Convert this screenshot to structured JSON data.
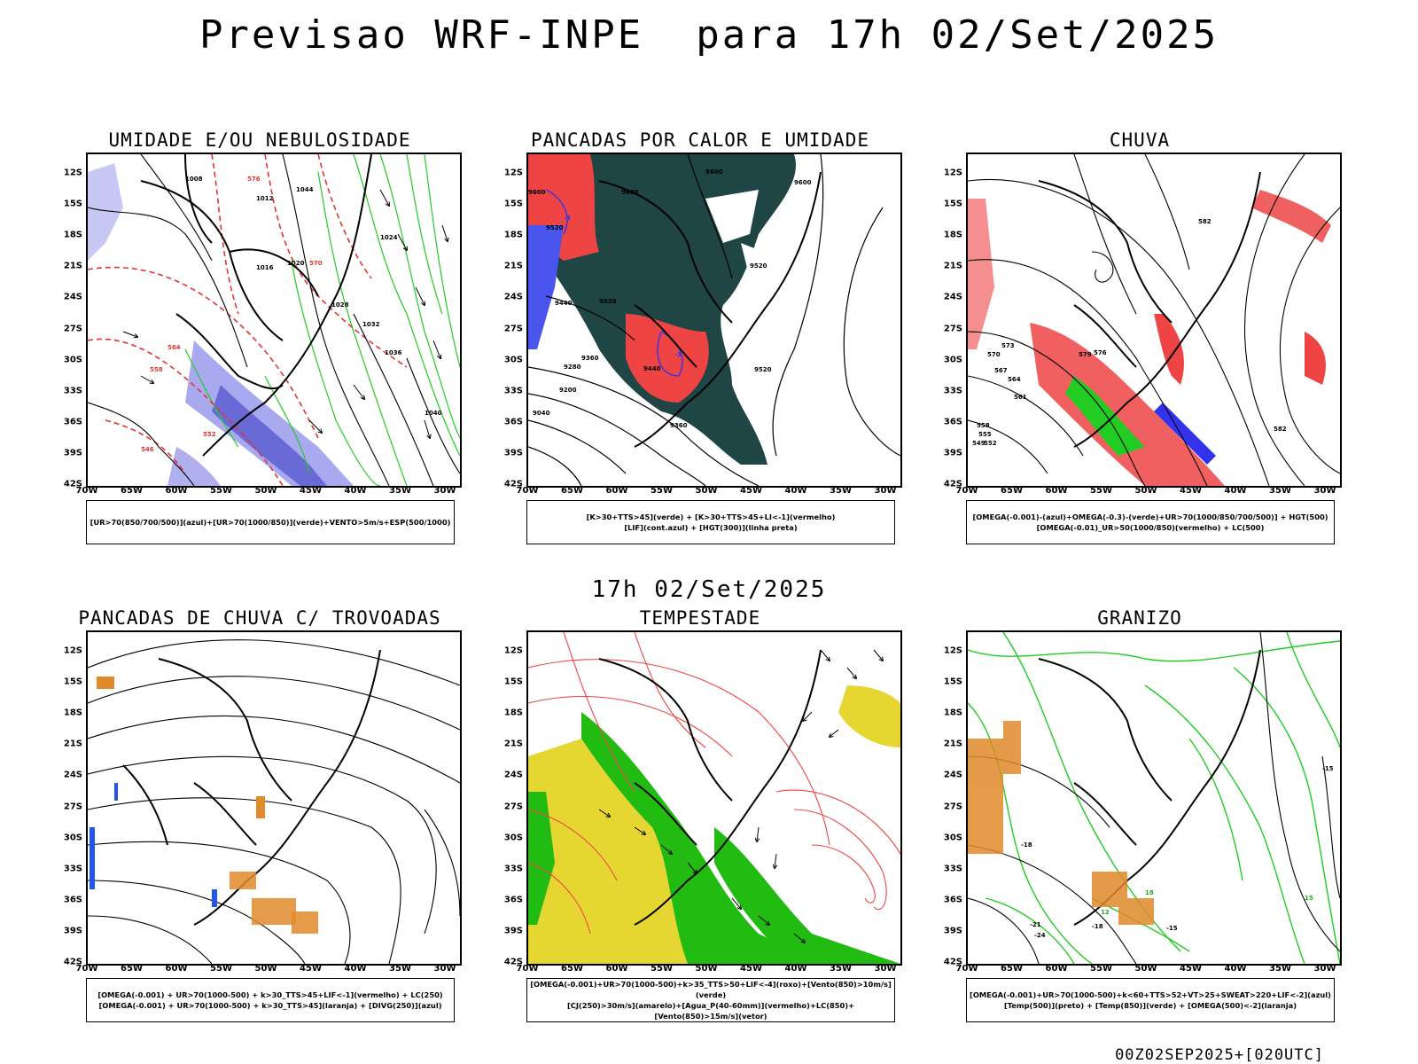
{
  "header": {
    "title": "Previsao WRF-INPE  para 17h 02/Set/2025",
    "mid_date": "17h 02/Set/2025",
    "run_label": "00Z02SEP2025+[020UTC]"
  },
  "axes": {
    "lat_labels": [
      "12S",
      "15S",
      "18S",
      "21S",
      "24S",
      "27S",
      "30S",
      "33S",
      "36S",
      "39S",
      "42S"
    ],
    "lon_labels": [
      "70W",
      "65W",
      "60W",
      "55W",
      "50W",
      "45W",
      "40W",
      "35W",
      "30W"
    ]
  },
  "panels": [
    {
      "id": "umidade",
      "title": "UMIDADE E/OU NEBULOSIDADE",
      "legend": [
        "[UR>70(850/700/500)](azul)+[UR>70(1000/850)](verde)+VENTO>5m/s+ESP(500/1000)"
      ],
      "contour_labels": [
        "1008",
        "1012",
        "1016",
        "1020",
        "1024",
        "1028",
        "1032",
        "1036",
        "1040",
        "1044",
        "576",
        "570",
        "564",
        "558",
        "552",
        "546"
      ],
      "colors": {
        "primary": "#8a8ae6",
        "secondary": "#22cc22",
        "accent": "#e33333"
      }
    },
    {
      "id": "pancadas-calor",
      "title": "PANCADAS POR CALOR E UMIDADE",
      "legend": [
        "[K>30+TTS>45](verde) + [K>30+TTS>45+LI<-1](vermelho)",
        "[LIF](cont.azul) + [HGT(300)](linha preta)"
      ],
      "contour_labels": [
        "9600",
        "9520",
        "9440",
        "9360",
        "9280",
        "9200",
        "9040",
        "-3"
      ],
      "colors": {
        "primary": "#1f4545",
        "secondary": "#ef4444",
        "accent": "#3333ee"
      }
    },
    {
      "id": "chuva",
      "title": "CHUVA",
      "legend": [
        "[OMEGA(-0.001)-(azul)+OMEGA(-0.3)-(verde)+UR>70(1000/850/700/500)] + HGT(500)",
        "[OMEGA(-0.01)_UR>50(1000/850)(vermelho) + LC(500)"
      ],
      "contour_labels": [
        "582",
        "579",
        "576",
        "573",
        "570",
        "567",
        "564",
        "561",
        "558",
        "555",
        "552",
        "549"
      ],
      "colors": {
        "primary": "#ef3333",
        "secondary": "#22cc22",
        "accent": "#3333ee"
      }
    },
    {
      "id": "trovoadas",
      "title": "PANCADAS DE CHUVA C/ TROVOADAS",
      "legend": [
        "[OMEGA(-0.001) + UR>70(1000-500) + k>30_TTS>45+LIF<-1](vermelho) + LC(250)",
        "[OMEGA(-0.001) + UR>70(1000-500) + k>30_TTS>45](laranja) + [DIVG(250)](azul)"
      ],
      "contour_labels": [],
      "colors": {
        "primary": "#e08a2a",
        "secondary": "#2255ee",
        "accent": "#ef3333"
      }
    },
    {
      "id": "tempestade",
      "title": "TEMPESTADE",
      "legend": [
        "[OMEGA(-0.001)+UR>70(1000-500)+k>35_TTS>50+LIF<-4](roxo)+[Vento(850)>10m/s](verde)",
        "[CJ(250)>30m/s](amarelo)+[Agua_P(40-60mm)](vermelho)+LC(850)+[Vento(850)>15m/s](vetor)"
      ],
      "contour_labels": [],
      "colors": {
        "primary": "#22bb11",
        "secondary": "#e6d632",
        "accent": "#ef4444"
      }
    },
    {
      "id": "granizo",
      "title": "GRANIZO",
      "legend": [
        "[OMEGA(-0.001)+UR>70(1000-500)+k<60+TTS>52+VT>25+SWEAT>220+LIF<-2](azul)",
        "[Temp(500)](preto) + [Temp(850)](verde) + [OMEGA(500)<-2](laranja)"
      ],
      "contour_labels": [
        "-18",
        "-15",
        "-21",
        "-24",
        "12",
        "15",
        "18"
      ],
      "colors": {
        "primary": "#22cc22",
        "secondary": "#e08a2a",
        "accent": "#000000"
      }
    }
  ]
}
